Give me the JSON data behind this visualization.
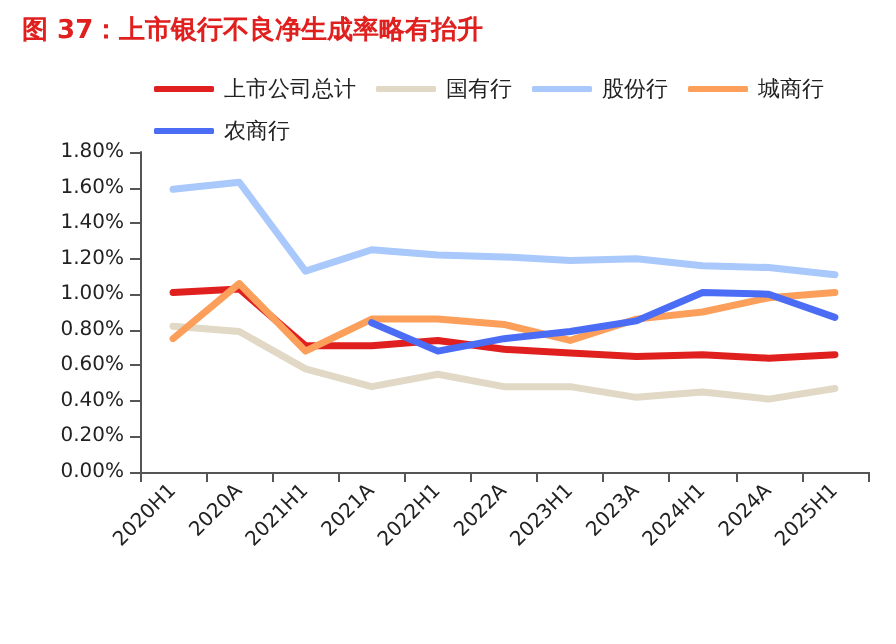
{
  "chart_data": {
    "type": "line",
    "title": "图 37：上市银行不良净生成率略有抬升",
    "categories": [
      "2020H1",
      "2020A",
      "2021H1",
      "2021A",
      "2022H1",
      "2022A",
      "2023H1",
      "2023A",
      "2024H1",
      "2024A",
      "2025H1"
    ],
    "series": [
      {
        "name": "上市公司总计",
        "color": "#e0201f",
        "values": [
          1.01,
          1.03,
          0.71,
          0.71,
          0.74,
          0.69,
          0.67,
          0.65,
          0.66,
          0.64,
          0.66
        ]
      },
      {
        "name": "国有行",
        "color": "#e1d9c6",
        "values": [
          0.82,
          0.79,
          0.58,
          0.48,
          0.55,
          0.48,
          0.48,
          0.42,
          0.45,
          0.41,
          0.47
        ]
      },
      {
        "name": "股份行",
        "color": "#a9c8fb",
        "values": [
          1.59,
          1.63,
          1.13,
          1.25,
          1.22,
          1.21,
          1.19,
          1.2,
          1.16,
          1.15,
          1.11
        ]
      },
      {
        "name": "城商行",
        "color": "#fc9f5b",
        "values": [
          0.75,
          1.06,
          0.68,
          0.86,
          0.86,
          0.83,
          0.74,
          0.86,
          0.9,
          0.98,
          1.01
        ]
      },
      {
        "name": "农商行",
        "color": "#4b6cf5",
        "values": [
          null,
          null,
          null,
          0.84,
          0.68,
          0.75,
          0.79,
          0.85,
          1.01,
          1.0,
          0.87
        ]
      }
    ],
    "ylim": [
      0,
      1.8
    ],
    "yticks": [
      {
        "value": 0,
        "label": "0.00%"
      },
      {
        "value": 0.2,
        "label": "0.20%"
      },
      {
        "value": 0.4,
        "label": "0.40%"
      },
      {
        "value": 0.6,
        "label": "0.60%"
      },
      {
        "value": 0.8,
        "label": "0.80%"
      },
      {
        "value": 1.0,
        "label": "1.00%"
      },
      {
        "value": 1.2,
        "label": "1.20%"
      },
      {
        "value": 1.4,
        "label": "1.40%"
      },
      {
        "value": 1.6,
        "label": "1.60%"
      },
      {
        "value": 1.8,
        "label": "1.80%"
      }
    ],
    "grid": false,
    "legend": "top",
    "marker": "none",
    "line_style": "solid"
  }
}
